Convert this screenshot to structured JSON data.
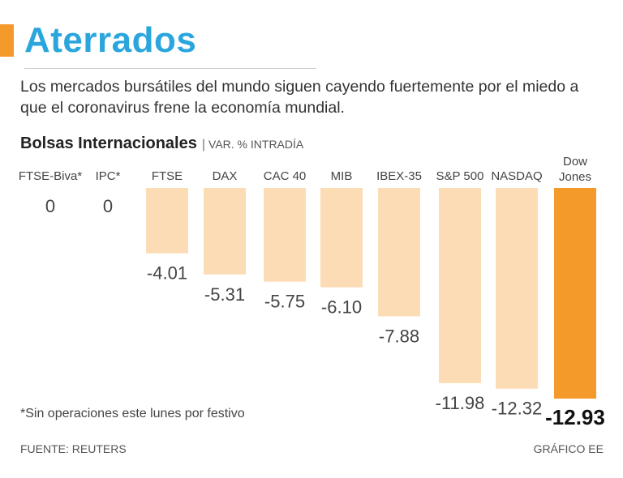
{
  "header": {
    "title": "Aterrados",
    "subtitle": "Los mercados bursátiles del mundo siguen cayendo fuertemente por el miedo a que el coronavirus frene la economía mundial."
  },
  "chart_heading": {
    "title": "Bolsas Internacionales",
    "separator": "|",
    "unit": "VAR. % INTRADÍA"
  },
  "chart_data": {
    "type": "bar",
    "categories": [
      "FTSE-Biva*",
      "IPC*",
      "FTSE",
      "DAX",
      "CAC 40",
      "MIB",
      "IBEX-35",
      "S&P 500",
      "NASDAQ",
      "Dow Jones"
    ],
    "value_labels": [
      "0",
      "0",
      "-4.01",
      "-5.31",
      "-5.75",
      "-6.10",
      "-7.88",
      "-11.98",
      "-12.32",
      "-12.93"
    ],
    "values": [
      0,
      0,
      -4.01,
      -5.31,
      -5.75,
      -6.1,
      -7.88,
      -11.98,
      -12.32,
      -12.93
    ],
    "highlight_category": "Dow Jones",
    "ylim": [
      -12.93,
      0
    ],
    "colors": {
      "bar": "#fcdcb5",
      "highlight": "#f39a2b"
    },
    "grid": false,
    "legend": "none"
  },
  "footer": {
    "footnote": "*Sin operaciones este lunes por festivo",
    "source": "FUENTE: REUTERS",
    "credit": "GRÁFICO EE"
  }
}
